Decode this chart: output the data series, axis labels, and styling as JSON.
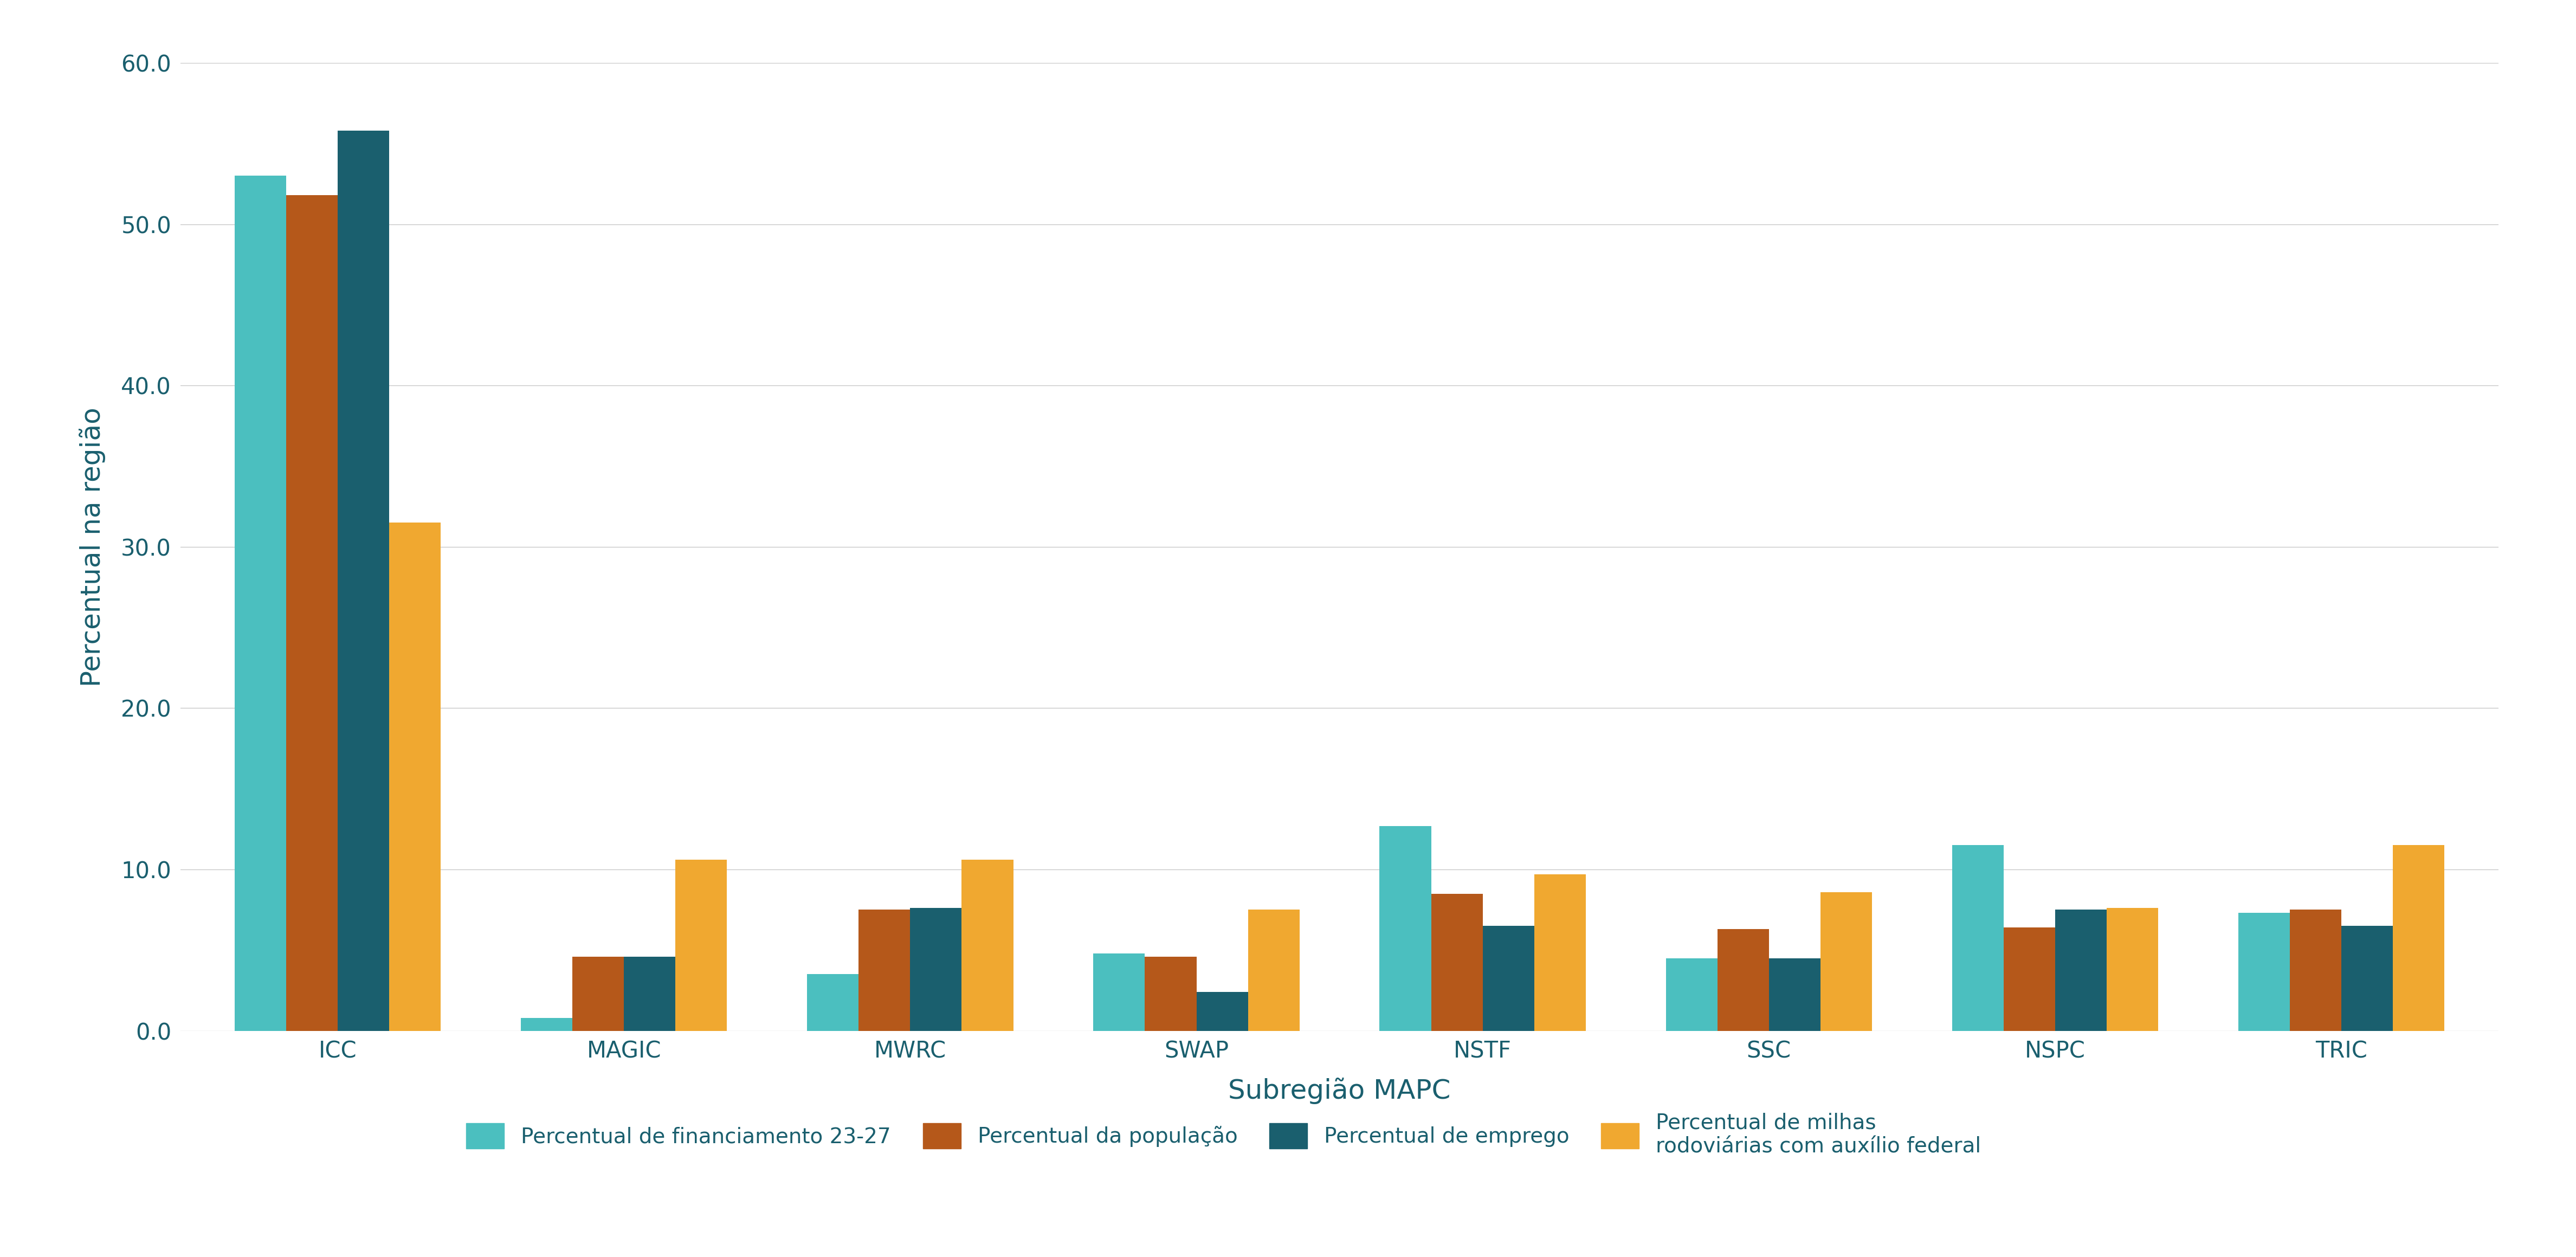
{
  "categories": [
    "ICC",
    "MAGIC",
    "MWRC",
    "SWAP",
    "NSTF",
    "SSC",
    "NSPC",
    "TRIC"
  ],
  "series": {
    "Percentual de financiamento 23-27": [
      53.0,
      0.8,
      3.5,
      4.8,
      12.7,
      4.5,
      11.5,
      7.3
    ],
    "Percentual da população": [
      51.8,
      4.6,
      7.5,
      4.6,
      8.5,
      6.3,
      6.4,
      7.5
    ],
    "Percentual de emprego": [
      55.8,
      4.6,
      7.6,
      2.4,
      6.5,
      4.5,
      7.5,
      6.5
    ],
    "Percentual de milhas rodoviárias com auxílio federal": [
      31.5,
      10.6,
      10.6,
      7.5,
      9.7,
      8.6,
      7.6,
      11.5
    ]
  },
  "colors": {
    "Percentual de financiamento 23-27": "#4BBFBF",
    "Percentual da população": "#B5581A",
    "Percentual de emprego": "#1A5F6E",
    "Percentual de milhas rodoviárias com auxílio federal": "#F0A830"
  },
  "ylabel": "Percentual na região",
  "xlabel": "Subregião MAPC",
  "ylim": [
    0,
    60
  ],
  "yticks": [
    0.0,
    10.0,
    20.0,
    30.0,
    40.0,
    50.0,
    60.0
  ],
  "tick_fontsize": 30,
  "axis_label_fontsize": 36,
  "legend_fontsize": 28,
  "bar_width": 0.18,
  "background_color": "#ffffff",
  "grid_color": "#c8c8c8",
  "axis_color": "#1A5F6E",
  "legend_label_wrap": {
    "Percentual de milhas rodoviárias com auxílio federal": "Percentual de milhas\nrodoviárias com auxílio federal"
  }
}
